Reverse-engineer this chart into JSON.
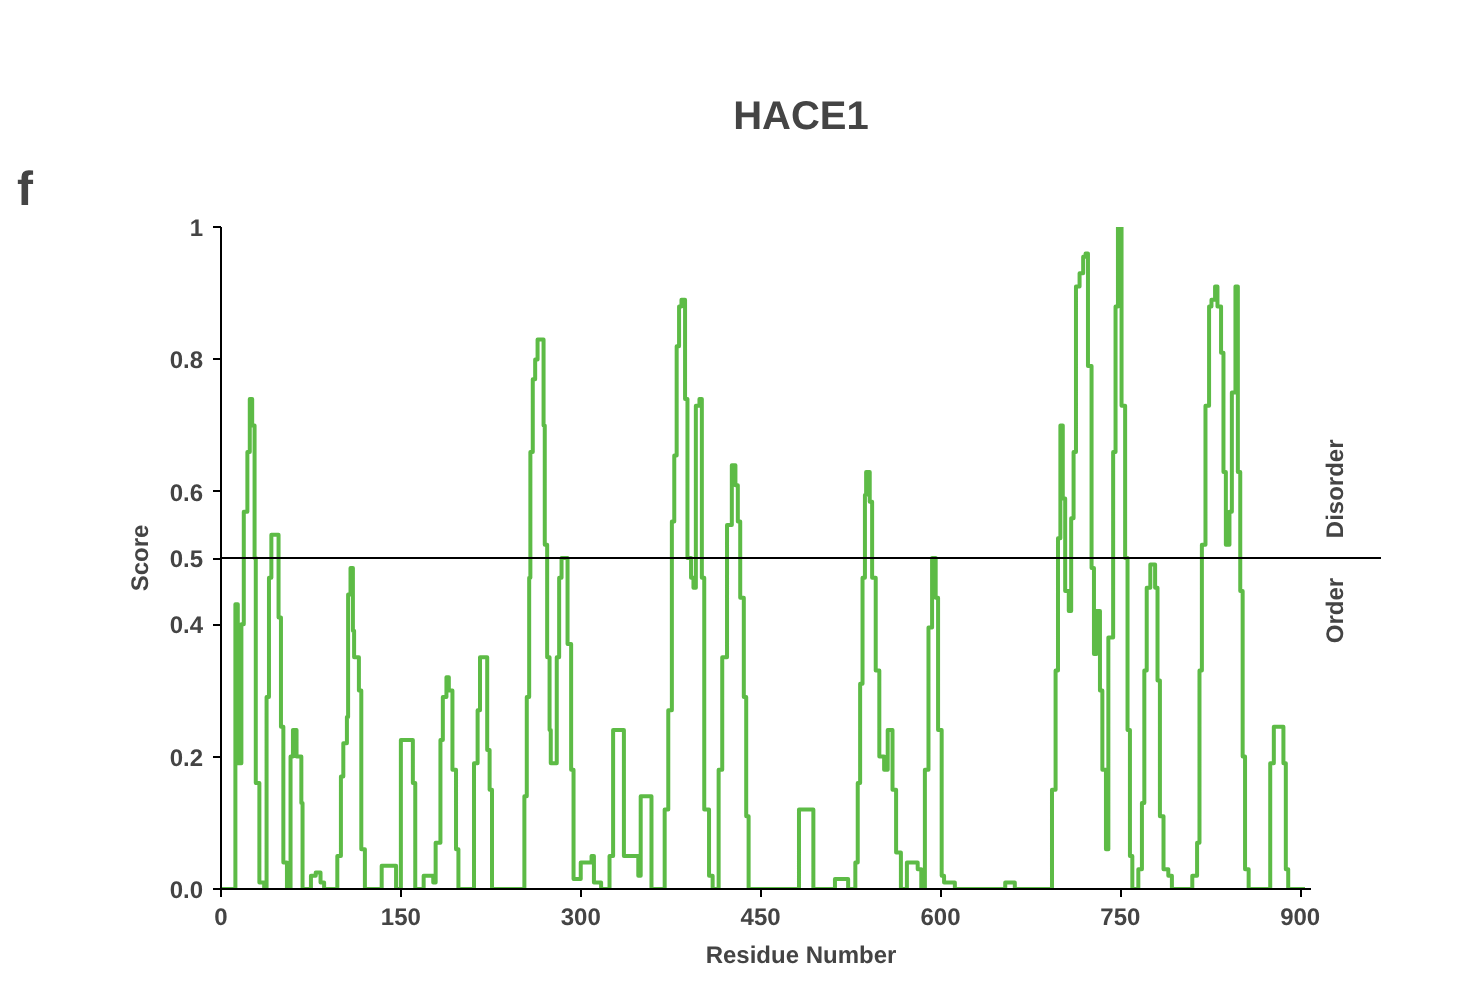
{
  "chart_data": {
    "type": "step",
    "title": "HACE1",
    "xlabel": "Residue Number",
    "ylabel": "Score",
    "annotations": [
      "f",
      "Disorder",
      "Order"
    ],
    "xlim": [
      0,
      909
    ],
    "ylim": [
      0,
      1
    ],
    "xticks": [
      0,
      150,
      300,
      450,
      600,
      750,
      900
    ],
    "yticks": [
      {
        "value": 0,
        "label": "0.0"
      },
      0.2,
      0.4,
      0.5,
      0.6,
      0.8,
      1
    ],
    "ref_lines": [
      {
        "axis": "y",
        "value": 0.5,
        "color": "#000000"
      }
    ],
    "grid": false,
    "x": [
      0,
      12,
      14,
      17,
      19,
      22,
      24,
      26,
      28,
      29,
      32,
      36,
      38,
      40,
      42,
      46,
      48,
      50,
      52,
      55,
      58,
      60,
      63,
      67,
      68,
      75,
      79,
      83,
      86,
      97,
      100,
      102,
      105,
      106,
      108,
      110,
      111,
      115,
      117,
      120,
      134,
      145,
      146,
      150,
      160,
      162,
      169,
      177,
      179,
      183,
      185,
      188,
      190,
      193,
      196,
      198,
      211,
      214,
      216,
      220,
      222,
      224,
      226,
      253,
      255,
      257,
      258,
      260,
      262,
      264,
      268,
      269,
      270,
      272,
      274,
      275,
      278,
      280,
      282,
      284,
      287,
      289,
      292,
      294,
      300,
      309,
      311,
      317,
      324,
      327,
      334,
      336,
      348,
      350,
      356,
      359,
      370,
      373,
      376,
      378,
      380,
      382,
      384,
      387,
      389,
      392,
      394,
      396,
      399,
      401,
      403,
      407,
      410,
      415,
      418,
      422,
      425,
      426,
      429,
      431,
      433,
      436,
      438,
      440,
      482,
      494,
      512,
      520,
      523,
      529,
      531,
      533,
      535,
      537,
      538,
      541,
      543,
      546,
      549,
      553,
      556,
      560,
      563,
      567,
      572,
      581,
      584,
      587,
      590,
      593,
      596,
      598,
      601,
      603,
      612,
      654,
      662,
      693,
      696,
      698,
      700,
      702,
      704,
      707,
      709,
      711,
      713,
      716,
      719,
      721,
      723,
      726,
      728,
      730,
      733,
      735,
      738,
      740,
      744,
      746,
      748,
      751,
      754,
      756,
      758,
      760,
      765,
      768,
      770,
      772,
      775,
      779,
      781,
      783,
      786,
      790,
      793,
      810,
      814,
      816,
      818,
      821,
      824,
      826,
      829,
      831,
      834,
      836,
      838,
      841,
      843,
      846,
      848,
      850,
      852,
      854,
      857,
      875,
      878,
      883,
      886,
      888,
      890,
      904
    ],
    "series": [
      {
        "color": "#5dbb46",
        "values": [
          0,
          0.43,
          0.19,
          0.4,
          0.57,
          0.66,
          0.74,
          0.7,
          0.5,
          0.16,
          0.01,
          0,
          0.29,
          0.47,
          0.535,
          0.535,
          0.41,
          0.245,
          0.04,
          0,
          0.2,
          0.24,
          0.2,
          0.13,
          0,
          0.02,
          0.025,
          0.01,
          0,
          0.05,
          0.17,
          0.22,
          0.26,
          0.445,
          0.485,
          0.39,
          0.35,
          0.3,
          0.06,
          0,
          0.035,
          0.035,
          0,
          0.225,
          0.16,
          0,
          0.02,
          0.01,
          0.07,
          0.225,
          0.29,
          0.32,
          0.3,
          0.18,
          0.06,
          0,
          0.19,
          0.27,
          0.35,
          0.35,
          0.21,
          0.15,
          0,
          0.14,
          0.29,
          0.47,
          0.66,
          0.77,
          0.8,
          0.83,
          0.83,
          0.7,
          0.52,
          0.35,
          0.24,
          0.19,
          0.19,
          0.35,
          0.47,
          0.5,
          0.5,
          0.37,
          0.18,
          0.015,
          0.04,
          0.05,
          0.01,
          0,
          0.05,
          0.24,
          0.24,
          0.05,
          0.02,
          0.14,
          0.14,
          0,
          0.12,
          0.27,
          0.555,
          0.655,
          0.82,
          0.88,
          0.89,
          0.74,
          0.5,
          0.47,
          0.455,
          0.73,
          0.74,
          0.47,
          0.12,
          0.02,
          0,
          0.18,
          0.35,
          0.55,
          0.55,
          0.64,
          0.61,
          0.555,
          0.44,
          0.29,
          0.11,
          0,
          0.12,
          0,
          0.015,
          0.015,
          0,
          0.04,
          0.16,
          0.31,
          0.47,
          0.595,
          0.63,
          0.585,
          0.47,
          0.33,
          0.2,
          0.18,
          0.24,
          0.15,
          0.055,
          0,
          0.04,
          0.03,
          0,
          0.18,
          0.395,
          0.5,
          0.44,
          0.24,
          0.02,
          0.01,
          0,
          0.01,
          0,
          0.15,
          0.33,
          0.53,
          0.7,
          0.59,
          0.45,
          0.42,
          0.56,
          0.66,
          0.91,
          0.93,
          0.955,
          0.96,
          0.79,
          0.485,
          0.355,
          0.42,
          0.3,
          0.18,
          0.06,
          0.38,
          0.66,
          0.88,
          1.0,
          0.73,
          0.5,
          0.24,
          0.05,
          0,
          0.03,
          0.13,
          0.33,
          0.455,
          0.49,
          0.455,
          0.315,
          0.11,
          0.03,
          0.02,
          0,
          0.02,
          0.07,
          0.33,
          0.52,
          0.73,
          0.88,
          0.89,
          0.91,
          0.88,
          0.81,
          0.63,
          0.52,
          0.57,
          0.75,
          0.91,
          0.63,
          0.45,
          0.2,
          0.03,
          0,
          0.19,
          0.245,
          0.245,
          0.19,
          0.03,
          0,
          0
        ]
      }
    ]
  }
}
